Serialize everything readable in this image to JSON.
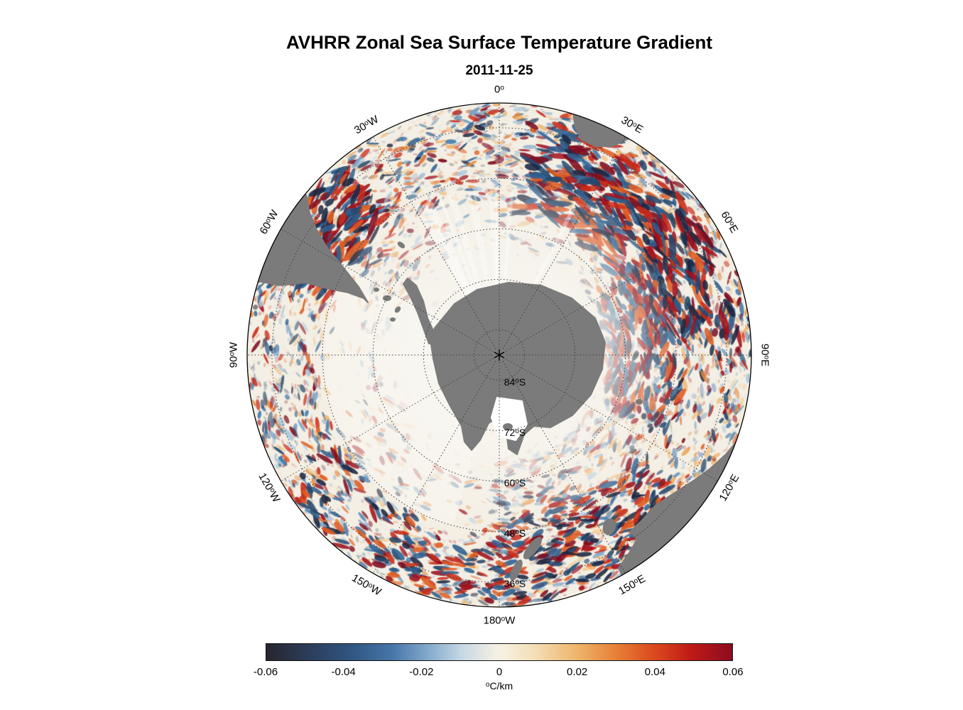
{
  "title": "AVHRR Zonal Sea Surface Temperature Gradient",
  "subtitle": "2011-11-25",
  "map": {
    "meridian_labels": [
      {
        "num": "0",
        "sup": "o",
        "suffix": "",
        "angle": 0
      },
      {
        "num": "30",
        "sup": "o",
        "suffix": "E",
        "angle": 30
      },
      {
        "num": "60",
        "sup": "o",
        "suffix": "E",
        "angle": 60
      },
      {
        "num": "90",
        "sup": "o",
        "suffix": "E",
        "angle": 90
      },
      {
        "num": "120",
        "sup": "o",
        "suffix": "E",
        "angle": 120
      },
      {
        "num": "150",
        "sup": "o",
        "suffix": "E",
        "angle": 150
      },
      {
        "num": "180",
        "sup": "o",
        "suffix": "W",
        "angle": 180
      },
      {
        "num": "150",
        "sup": "o",
        "suffix": "W",
        "angle": -150
      },
      {
        "num": "120",
        "sup": "o",
        "suffix": "W",
        "angle": -120
      },
      {
        "num": "90",
        "sup": "o",
        "suffix": "W",
        "angle": -90
      },
      {
        "num": "60",
        "sup": "o",
        "suffix": "W",
        "angle": -60
      },
      {
        "num": "30",
        "sup": "o",
        "suffix": "W",
        "angle": -30
      }
    ],
    "parallel_labels": [
      {
        "num": "84",
        "sup": "o",
        "suffix": "S",
        "lat": 84
      },
      {
        "num": "72",
        "sup": "o",
        "suffix": "S",
        "lat": 72
      },
      {
        "num": "60",
        "sup": "o",
        "suffix": "S",
        "lat": 60
      },
      {
        "num": "48",
        "sup": "o",
        "suffix": "S",
        "lat": 48
      },
      {
        "num": "36",
        "sup": "o",
        "suffix": "S",
        "lat": 36
      }
    ]
  },
  "colorbar": {
    "ticks": [
      "-0.06",
      "-0.04",
      "-0.02",
      "0",
      "0.02",
      "0.04",
      "0.06"
    ],
    "min": -0.06,
    "max": 0.06,
    "unit_sup": "o",
    "unit_text": "C/km",
    "gradient": [
      {
        "c": "#26262e",
        "p": 0
      },
      {
        "c": "#2c3a55",
        "p": 8
      },
      {
        "c": "#2f5580",
        "p": 18
      },
      {
        "c": "#4676a8",
        "p": 27
      },
      {
        "c": "#86abcd",
        "p": 35
      },
      {
        "c": "#c6d8e4",
        "p": 42
      },
      {
        "c": "#f2efe4",
        "p": 49
      },
      {
        "c": "#f7f0df",
        "p": 51
      },
      {
        "c": "#f3ddb4",
        "p": 58
      },
      {
        "c": "#eeb369",
        "p": 67
      },
      {
        "c": "#e68137",
        "p": 75
      },
      {
        "c": "#dc4b1e",
        "p": 83
      },
      {
        "c": "#c01b16",
        "p": 91
      },
      {
        "c": "#8c0c20",
        "p": 100
      }
    ]
  },
  "colors": {
    "ocean": "#f4efe4",
    "land": "#7b7b7b",
    "ice": "#ffffff",
    "grid": "#3c3c3c",
    "outline": "#000000",
    "neg": [
      "#1c2742",
      "#27496d",
      "#2f6090",
      "#4a80ae",
      "#7fa6cb",
      "#aac7dd"
    ],
    "pos": [
      "#f2c98e",
      "#eeaf62",
      "#e78c3e",
      "#df5c22",
      "#cb2b18",
      "#a1121e",
      "#7f0c20"
    ],
    "pale": [
      "#e2eaf1",
      "#f5e6cd",
      "#efe8d8",
      "#f8f4ea"
    ]
  },
  "chart_data": {
    "type": "heatmap",
    "title": "AVHRR Zonal Sea Surface Temperature Gradient",
    "date": "2011-11-25",
    "projection": "South polar stereographic view centered on the South Pole",
    "variable": "Zonal sea surface temperature gradient",
    "units": "°C/km",
    "value_range": [
      -0.06,
      0.06
    ],
    "colorbar_ticks": [
      -0.06,
      -0.04,
      -0.02,
      0,
      0.02,
      0.04,
      0.06
    ],
    "colorbar_orientation": "horizontal",
    "parallel_gridlines_deg_S": [
      84,
      72,
      60,
      48,
      36
    ],
    "meridian_gridlines": [
      "0",
      "30E",
      "60E",
      "90E",
      "120E",
      "150E",
      "180W",
      "150W",
      "120W",
      "90W",
      "60W",
      "30W"
    ],
    "land_masses_visible": [
      "Antarctica",
      "southern South America",
      "southern Africa",
      "southern Australia",
      "Tasmania",
      "New Zealand"
    ],
    "field_description": "Dense mesoscale field of alternating positive (orange/red) and negative (blue/navy) zonal SST gradient filaments across the Southern Ocean; strongest dipole streaks in the Agulhas Return Current sector (20E-90E) and near the Brazil-Malvinas confluence off South America; near-zero pale values around the Antarctic coast, sea-ice zone and Ross Sea sector"
  }
}
